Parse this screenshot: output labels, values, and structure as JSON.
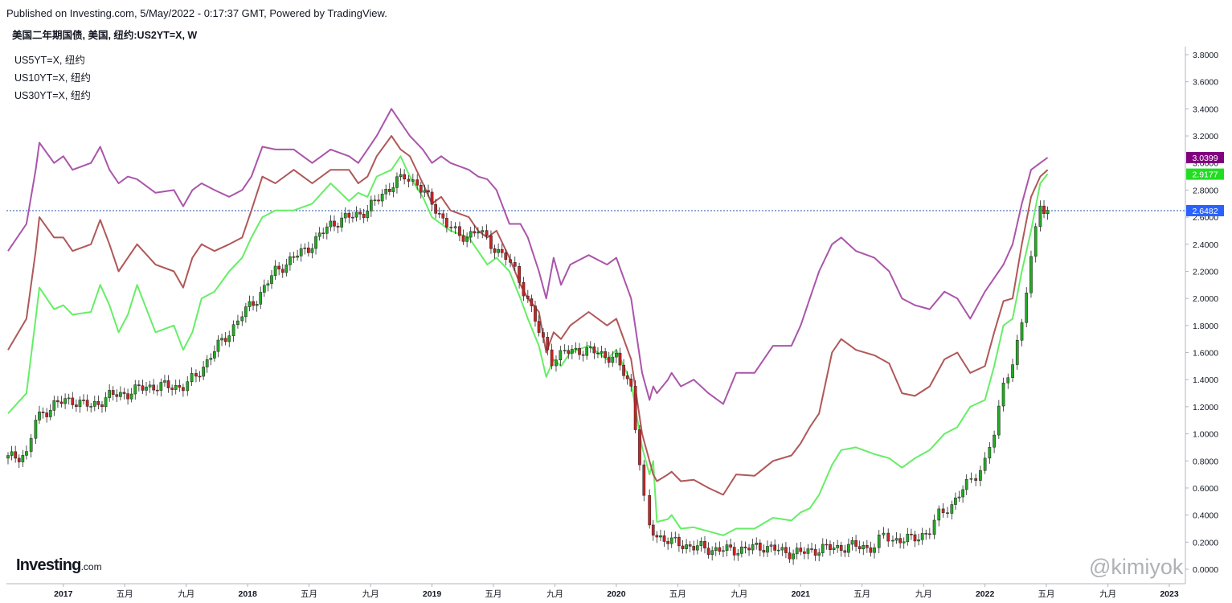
{
  "header": {
    "published": "Published on Investing.com, 5/May/2022 - 0:17:37 GMT, Powered by TradingView.",
    "title": "美国二年期国债, 美国, 纽约:US2YT=X, W"
  },
  "legend": [
    "US5YT=X, 纽约",
    "US10YT=X, 纽约",
    "US30YT=X, 纽约"
  ],
  "logo": {
    "main": "Investing",
    "suffix": ".com"
  },
  "watermark": "@kimiyok",
  "colors": {
    "us5": "#66ee66",
    "us10": "#b05858",
    "us30": "#aa55aa",
    "candle_up": "#22aa22",
    "candle_down": "#cc2222",
    "grid": "#cccccc",
    "hline": "#2255aa"
  },
  "chart_data": {
    "type": "line",
    "title": "美国二年期国债, 美国, 纽约:US2YT=X, W",
    "xlabel": "",
    "ylabel": "",
    "ylim": [
      0.0,
      3.9
    ],
    "x_ticks": [
      "2017",
      "五月",
      "九月",
      "2018",
      "五月",
      "九月",
      "2019",
      "五月",
      "九月",
      "2020",
      "五月",
      "九月",
      "2021",
      "五月",
      "九月",
      "2022",
      "五月",
      "九月",
      "2023"
    ],
    "x_tick_years": [
      2017.0,
      2017.333,
      2017.667,
      2018.0,
      2018.333,
      2018.667,
      2019.0,
      2019.333,
      2019.667,
      2020.0,
      2020.333,
      2020.667,
      2021.0,
      2021.333,
      2021.667,
      2022.0,
      2022.333,
      2022.667,
      2023.0
    ],
    "y_ticks": [
      "3.8000",
      "3.6000",
      "3.4000",
      "3.2000",
      "3.0000",
      "2.8000",
      "2.6000",
      "2.4000",
      "2.2000",
      "2.0000",
      "1.8000",
      "1.6000",
      "1.4000",
      "1.2000",
      "1.0000",
      "0.8000",
      "0.6000",
      "0.4000",
      "0.2000",
      "0.0000"
    ],
    "y_tick_values": [
      3.8,
      3.6,
      3.4,
      3.2,
      3.0,
      2.8,
      2.6,
      2.4,
      2.2,
      2.0,
      1.8,
      1.6,
      1.4,
      1.2,
      1.0,
      0.8,
      0.6,
      0.4,
      0.2,
      0.0
    ],
    "last_values": [
      {
        "label": "3.0399",
        "value": 3.0399,
        "color": "#800080"
      },
      {
        "label": "2.9177",
        "value": 2.9177,
        "color": "#22dd22"
      },
      {
        "label": "2.6482",
        "value": 2.6482,
        "color": "#2962ff"
      }
    ],
    "series": [
      {
        "name": "US5YT=X",
        "color": "#66ee66",
        "x": [
          2016.7,
          2016.8,
          2016.85,
          2016.87,
          2016.95,
          2017.0,
          2017.05,
          2017.15,
          2017.2,
          2017.25,
          2017.3,
          2017.35,
          2017.4,
          2017.5,
          2017.6,
          2017.65,
          2017.7,
          2017.75,
          2017.82,
          2017.9,
          2017.97,
          2018.02,
          2018.08,
          2018.15,
          2018.25,
          2018.35,
          2018.45,
          2018.55,
          2018.6,
          2018.65,
          2018.7,
          2018.78,
          2018.83,
          2018.88,
          2018.95,
          2019.0,
          2019.05,
          2019.1,
          2019.2,
          2019.25,
          2019.3,
          2019.35,
          2019.42,
          2019.48,
          2019.52,
          2019.58,
          2019.62,
          2019.66,
          2019.7,
          2019.75,
          2019.85,
          2019.95,
          2020.0,
          2020.08,
          2020.14,
          2020.18,
          2020.2,
          2020.22,
          2020.28,
          2020.3,
          2020.35,
          2020.42,
          2020.5,
          2020.58,
          2020.65,
          2020.75,
          2020.85,
          2020.95,
          2021.0,
          2021.05,
          2021.1,
          2021.17,
          2021.22,
          2021.3,
          2021.4,
          2021.48,
          2021.55,
          2021.62,
          2021.7,
          2021.78,
          2021.85,
          2021.92,
          2022.0,
          2022.05,
          2022.1,
          2022.15,
          2022.2,
          2022.25,
          2022.3,
          2022.34
        ],
        "values": [
          1.15,
          1.3,
          1.85,
          2.08,
          1.92,
          1.95,
          1.88,
          1.9,
          2.1,
          1.95,
          1.75,
          1.88,
          2.1,
          1.75,
          1.8,
          1.62,
          1.75,
          2.0,
          2.05,
          2.2,
          2.3,
          2.45,
          2.6,
          2.65,
          2.65,
          2.7,
          2.85,
          2.72,
          2.78,
          2.75,
          2.9,
          2.95,
          3.05,
          2.9,
          2.75,
          2.6,
          2.55,
          2.5,
          2.45,
          2.35,
          2.25,
          2.3,
          2.2,
          2.0,
          1.85,
          1.65,
          1.42,
          1.55,
          1.5,
          1.6,
          1.65,
          1.55,
          1.62,
          1.38,
          0.9,
          0.7,
          0.8,
          0.35,
          0.37,
          0.4,
          0.3,
          0.31,
          0.28,
          0.25,
          0.3,
          0.3,
          0.38,
          0.36,
          0.42,
          0.45,
          0.55,
          0.77,
          0.88,
          0.9,
          0.85,
          0.82,
          0.75,
          0.82,
          0.88,
          1.0,
          1.05,
          1.2,
          1.25,
          1.5,
          1.8,
          1.85,
          2.2,
          2.5,
          2.85,
          2.92
        ]
      },
      {
        "name": "US10YT=X",
        "color": "#b05858",
        "x": [
          2016.7,
          2016.8,
          2016.85,
          2016.87,
          2016.95,
          2017.0,
          2017.05,
          2017.15,
          2017.2,
          2017.25,
          2017.3,
          2017.35,
          2017.4,
          2017.5,
          2017.6,
          2017.65,
          2017.7,
          2017.75,
          2017.82,
          2017.9,
          2017.97,
          2018.02,
          2018.08,
          2018.15,
          2018.25,
          2018.35,
          2018.45,
          2018.55,
          2018.6,
          2018.65,
          2018.7,
          2018.78,
          2018.83,
          2018.88,
          2018.95,
          2019.0,
          2019.05,
          2019.1,
          2019.2,
          2019.25,
          2019.3,
          2019.35,
          2019.42,
          2019.48,
          2019.52,
          2019.58,
          2019.62,
          2019.66,
          2019.7,
          2019.75,
          2019.85,
          2019.95,
          2020.0,
          2020.08,
          2020.14,
          2020.18,
          2020.2,
          2020.22,
          2020.28,
          2020.3,
          2020.35,
          2020.42,
          2020.5,
          2020.58,
          2020.65,
          2020.75,
          2020.85,
          2020.95,
          2021.0,
          2021.05,
          2021.1,
          2021.17,
          2021.22,
          2021.3,
          2021.4,
          2021.48,
          2021.55,
          2021.62,
          2021.7,
          2021.78,
          2021.85,
          2021.92,
          2022.0,
          2022.05,
          2022.1,
          2022.15,
          2022.2,
          2022.25,
          2022.3,
          2022.34
        ],
        "values": [
          1.62,
          1.85,
          2.35,
          2.6,
          2.45,
          2.45,
          2.35,
          2.4,
          2.58,
          2.4,
          2.2,
          2.3,
          2.4,
          2.25,
          2.2,
          2.08,
          2.3,
          2.4,
          2.35,
          2.4,
          2.45,
          2.65,
          2.9,
          2.85,
          2.95,
          2.85,
          2.95,
          2.95,
          2.85,
          2.9,
          3.05,
          3.2,
          3.1,
          3.05,
          2.85,
          2.7,
          2.75,
          2.65,
          2.6,
          2.5,
          2.45,
          2.5,
          2.3,
          2.1,
          2.0,
          1.9,
          1.6,
          1.75,
          1.7,
          1.8,
          1.9,
          1.8,
          1.85,
          1.55,
          1.0,
          0.8,
          0.7,
          0.65,
          0.7,
          0.72,
          0.65,
          0.66,
          0.6,
          0.55,
          0.7,
          0.69,
          0.8,
          0.84,
          0.93,
          1.05,
          1.15,
          1.6,
          1.7,
          1.62,
          1.58,
          1.52,
          1.3,
          1.28,
          1.35,
          1.55,
          1.6,
          1.45,
          1.5,
          1.75,
          1.98,
          2.0,
          2.4,
          2.75,
          2.9,
          2.95
        ]
      },
      {
        "name": "US30YT=X",
        "color": "#aa55aa",
        "x": [
          2016.7,
          2016.8,
          2016.85,
          2016.87,
          2016.95,
          2017.0,
          2017.05,
          2017.15,
          2017.2,
          2017.25,
          2017.3,
          2017.35,
          2017.4,
          2017.5,
          2017.6,
          2017.65,
          2017.7,
          2017.75,
          2017.82,
          2017.9,
          2017.97,
          2018.02,
          2018.08,
          2018.15,
          2018.25,
          2018.35,
          2018.45,
          2018.55,
          2018.6,
          2018.65,
          2018.7,
          2018.78,
          2018.83,
          2018.88,
          2018.95,
          2019.0,
          2019.05,
          2019.1,
          2019.2,
          2019.25,
          2019.3,
          2019.35,
          2019.42,
          2019.48,
          2019.52,
          2019.58,
          2019.62,
          2019.66,
          2019.7,
          2019.75,
          2019.85,
          2019.95,
          2020.0,
          2020.08,
          2020.14,
          2020.18,
          2020.2,
          2020.22,
          2020.28,
          2020.3,
          2020.35,
          2020.42,
          2020.5,
          2020.58,
          2020.65,
          2020.75,
          2020.85,
          2020.95,
          2021.0,
          2021.05,
          2021.1,
          2021.17,
          2021.22,
          2021.3,
          2021.4,
          2021.48,
          2021.55,
          2021.62,
          2021.7,
          2021.78,
          2021.85,
          2021.92,
          2022.0,
          2022.05,
          2022.1,
          2022.15,
          2022.2,
          2022.25,
          2022.3,
          2022.34
        ],
        "values": [
          2.35,
          2.55,
          2.95,
          3.15,
          3.0,
          3.05,
          2.95,
          3.0,
          3.12,
          2.95,
          2.85,
          2.9,
          2.88,
          2.78,
          2.8,
          2.68,
          2.8,
          2.85,
          2.8,
          2.75,
          2.8,
          2.9,
          3.12,
          3.1,
          3.1,
          3.0,
          3.1,
          3.05,
          3.0,
          3.1,
          3.2,
          3.4,
          3.3,
          3.2,
          3.1,
          3.0,
          3.05,
          3.0,
          2.95,
          2.9,
          2.88,
          2.8,
          2.55,
          2.55,
          2.45,
          2.2,
          2.0,
          2.3,
          2.1,
          2.25,
          2.32,
          2.25,
          2.3,
          2.0,
          1.45,
          1.25,
          1.35,
          1.3,
          1.4,
          1.45,
          1.35,
          1.4,
          1.3,
          1.22,
          1.45,
          1.45,
          1.65,
          1.65,
          1.8,
          2.0,
          2.2,
          2.4,
          2.45,
          2.35,
          2.3,
          2.2,
          2.0,
          1.95,
          1.92,
          2.05,
          2.0,
          1.85,
          2.05,
          2.15,
          2.25,
          2.4,
          2.7,
          2.95,
          3.0,
          3.04
        ]
      },
      {
        "name": "US2YT=X",
        "type": "candlestick",
        "x": [
          2016.7,
          2016.8,
          2016.85,
          2016.95,
          2017.05,
          2017.15,
          2017.25,
          2017.35,
          2017.45,
          2017.55,
          2017.65,
          2017.72,
          2017.8,
          2017.9,
          2017.97,
          2018.05,
          2018.15,
          2018.25,
          2018.35,
          2018.45,
          2018.55,
          2018.65,
          2018.75,
          2018.85,
          2018.92,
          2019.0,
          2019.08,
          2019.15,
          2019.25,
          2019.32,
          2019.4,
          2019.45,
          2019.52,
          2019.58,
          2019.65,
          2019.72,
          2019.8,
          2019.9,
          2020.0,
          2020.08,
          2020.15,
          2020.18,
          2020.22,
          2020.3,
          2020.4,
          2020.5,
          2020.6,
          2020.7,
          2020.8,
          2020.9,
          2021.0,
          2021.1,
          2021.2,
          2021.3,
          2021.4,
          2021.45,
          2021.5,
          2021.6,
          2021.7,
          2021.75,
          2021.82,
          2021.9,
          2021.95,
          2022.0,
          2022.05,
          2022.1,
          2022.15,
          2022.2,
          2022.25,
          2022.3,
          2022.34
        ],
        "values": [
          0.82,
          0.85,
          1.1,
          1.22,
          1.25,
          1.2,
          1.28,
          1.3,
          1.35,
          1.35,
          1.35,
          1.42,
          1.58,
          1.75,
          1.88,
          2.0,
          2.2,
          2.3,
          2.4,
          2.55,
          2.6,
          2.65,
          2.8,
          2.9,
          2.85,
          2.7,
          2.55,
          2.45,
          2.5,
          2.4,
          2.3,
          2.2,
          2.0,
          1.75,
          1.55,
          1.6,
          1.62,
          1.6,
          1.55,
          1.35,
          0.5,
          0.3,
          0.25,
          0.2,
          0.17,
          0.15,
          0.14,
          0.15,
          0.17,
          0.13,
          0.12,
          0.15,
          0.16,
          0.17,
          0.16,
          0.25,
          0.22,
          0.22,
          0.28,
          0.4,
          0.48,
          0.62,
          0.7,
          0.8,
          1.0,
          1.35,
          1.55,
          1.8,
          2.3,
          2.7,
          2.65
        ]
      }
    ]
  }
}
